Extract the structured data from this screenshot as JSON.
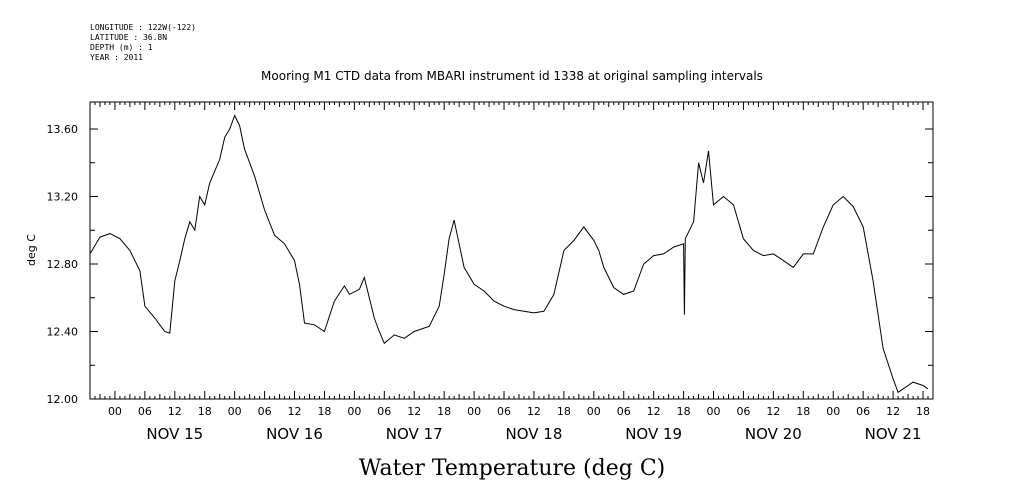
{
  "metadata": {
    "lines": [
      "LONGITUDE : 122W(-122)",
      "LATITUDE : 36.8N",
      "DEPTH (m) : 1",
      "YEAR : 2011"
    ]
  },
  "title": "Mooring M1 CTD data from MBARI instrument id 1338 at original sampling intervals",
  "bottom_title": "Water Temperature (deg C)",
  "chart_data": {
    "type": "line",
    "title": "Mooring M1 CTD data from MBARI instrument id 1338 at original sampling intervals",
    "xlabel": "",
    "ylabel": "deg C",
    "ylim": [
      12.0,
      13.76
    ],
    "xlim": [
      "NOV 14 19:00",
      "NOV 21 20:00"
    ],
    "y_ticks": [
      "12.00",
      "12.40",
      "12.80",
      "13.20",
      "13.60"
    ],
    "x_hour_ticks": [
      "00",
      "06",
      "12",
      "18"
    ],
    "day_labels": [
      "NOV 15",
      "NOV 16",
      "NOV 17",
      "NOV 18",
      "NOV 19",
      "NOV 20",
      "NOV 21"
    ],
    "series": [
      {
        "x": [
          "NOV 14 19:00",
          "NOV 14 21:00",
          "NOV 14 23:00",
          "NOV 15 01:00",
          "NOV 15 03:00",
          "NOV 15 05:00",
          "NOV 15 06:00",
          "NOV 15 08:00",
          "NOV 15 09:00",
          "NOV 15 10:00",
          "NOV 15 11:00",
          "NOV 15 12:00",
          "NOV 15 13:00",
          "NOV 15 14:00",
          "NOV 15 15:00",
          "NOV 15 16:00",
          "NOV 15 17:00",
          "NOV 15 18:00",
          "NOV 15 19:00",
          "NOV 15 20:00",
          "NOV 15 21:00",
          "NOV 15 22:00",
          "NOV 15 23:00",
          "NOV 16 00:00",
          "NOV 16 01:00",
          "NOV 16 02:00",
          "NOV 16 04:00",
          "NOV 16 06:00",
          "NOV 16 08:00",
          "NOV 16 10:00",
          "NOV 16 12:00",
          "NOV 16 13:00",
          "NOV 16 14:00",
          "NOV 16 16:00",
          "NOV 16 18:00",
          "NOV 16 20:00",
          "NOV 16 22:00",
          "NOV 16 23:00",
          "NOV 17 01:00",
          "NOV 17 02:00",
          "NOV 17 03:00",
          "NOV 17 04:00",
          "NOV 17 05:00",
          "NOV 17 06:00",
          "NOV 17 08:00",
          "NOV 17 10:00",
          "NOV 17 12:00",
          "NOV 17 15:00",
          "NOV 17 17:00",
          "NOV 17 18:00",
          "NOV 17 19:00",
          "NOV 17 20:00",
          "NOV 17 22:00",
          "NOV 18 00:00",
          "NOV 18 02:00",
          "NOV 18 04:00",
          "NOV 18 06:00",
          "NOV 18 08:00",
          "NOV 18 10:00",
          "NOV 18 12:00",
          "NOV 18 14:00",
          "NOV 18 16:00",
          "NOV 18 18:00",
          "NOV 18 20:00",
          "NOV 18 22:00",
          "NOV 19 00:00",
          "NOV 19 01:00",
          "NOV 19 02:00",
          "NOV 19 04:00",
          "NOV 19 06:00",
          "NOV 19 08:00",
          "NOV 19 10:00",
          "NOV 19 12:00",
          "NOV 19 14:00",
          "NOV 19 16:00",
          "NOV 19 18:00",
          "NOV 19 18:10",
          "NOV 19 18:20",
          "NOV 19 20:00",
          "NOV 19 21:00",
          "NOV 19 22:00",
          "NOV 19 23:00",
          "NOV 20 00:00",
          "NOV 20 02:00",
          "NOV 20 04:00",
          "NOV 20 06:00",
          "NOV 20 08:00",
          "NOV 20 10:00",
          "NOV 20 12:00",
          "NOV 20 14:00",
          "NOV 20 16:00",
          "NOV 20 18:00",
          "NOV 20 20:00",
          "NOV 20 22:00",
          "NOV 21 00:00",
          "NOV 21 02:00",
          "NOV 21 04:00",
          "NOV 21 06:00",
          "NOV 21 08:00",
          "NOV 21 10:00",
          "NOV 21 12:00",
          "NOV 21 13:00",
          "NOV 21 15:00",
          "NOV 21 16:00",
          "NOV 21 18:00",
          "NOV 21 19:00"
        ],
        "values": [
          12.86,
          12.96,
          12.98,
          12.95,
          12.88,
          12.76,
          12.55,
          12.48,
          12.44,
          12.4,
          12.39,
          12.7,
          12.82,
          12.95,
          13.05,
          13.0,
          13.2,
          13.15,
          13.28,
          13.35,
          13.42,
          13.55,
          13.6,
          13.68,
          13.62,
          13.48,
          13.32,
          13.12,
          12.97,
          12.92,
          12.82,
          12.68,
          12.45,
          12.44,
          12.4,
          12.58,
          12.67,
          12.62,
          12.65,
          12.72,
          12.6,
          12.48,
          12.4,
          12.33,
          12.38,
          12.36,
          12.4,
          12.43,
          12.55,
          12.74,
          12.95,
          13.06,
          12.78,
          12.68,
          12.64,
          12.58,
          12.55,
          12.53,
          12.52,
          12.51,
          12.52,
          12.62,
          12.88,
          12.94,
          13.02,
          12.94,
          12.88,
          12.78,
          12.66,
          12.62,
          12.64,
          12.8,
          12.85,
          12.86,
          12.9,
          12.92,
          12.5,
          12.95,
          13.05,
          13.4,
          13.28,
          13.47,
          13.15,
          13.2,
          13.15,
          12.95,
          12.88,
          12.85,
          12.86,
          12.82,
          12.78,
          12.86,
          12.86,
          13.02,
          13.15,
          13.2,
          13.14,
          13.02,
          12.7,
          12.3,
          12.12,
          12.04,
          12.08,
          12.1,
          12.08,
          12.06
        ]
      }
    ]
  }
}
